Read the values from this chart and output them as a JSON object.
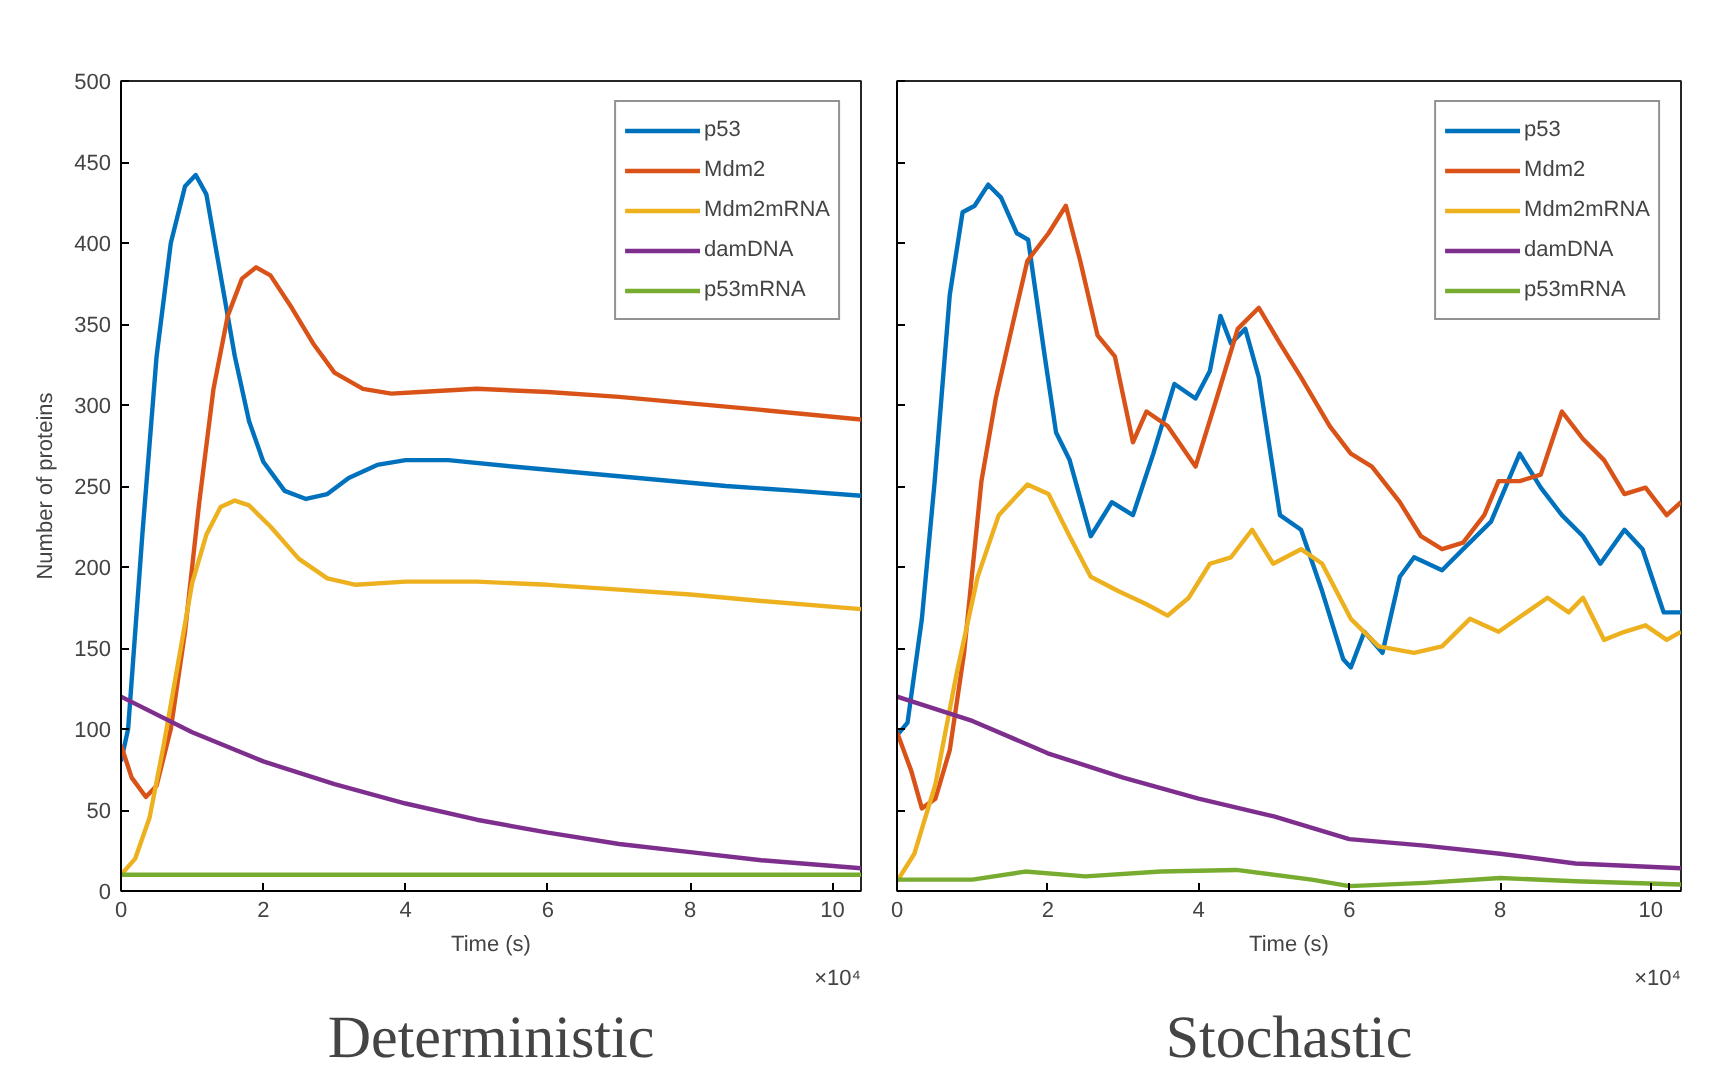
{
  "chart_data": [
    {
      "type": "line",
      "title": "Deterministic",
      "xlabel": "Time (s)",
      "ylabel": "Number of proteins",
      "annotations": [
        "×10⁴"
      ],
      "legend": "top right",
      "grid": false,
      "line_style": "solid",
      "xlim": [
        0,
        10.4
      ],
      "ylim": [
        0,
        500
      ],
      "xticks": [
        0,
        2,
        4,
        6,
        8,
        10
      ],
      "yticks": [
        0,
        50,
        100,
        150,
        200,
        250,
        300,
        350,
        400,
        450,
        500
      ],
      "series": [
        {
          "name": "p53",
          "color": "#0072bd",
          "x": [
            0,
            0.1,
            0.3,
            0.5,
            0.7,
            0.9,
            1.05,
            1.2,
            1.4,
            1.6,
            1.8,
            2.0,
            2.3,
            2.6,
            2.9,
            3.2,
            3.6,
            4.0,
            4.6,
            5.5,
            6.5,
            7.5,
            8.5,
            9.5,
            10.4
          ],
          "values": [
            80,
            100,
            220,
            330,
            400,
            435,
            442,
            430,
            380,
            330,
            290,
            265,
            247,
            242,
            245,
            255,
            263,
            266,
            266,
            262,
            258,
            254,
            250,
            247,
            244
          ]
        },
        {
          "name": "Mdm2",
          "color": "#d95319",
          "x": [
            0,
            0.15,
            0.35,
            0.5,
            0.7,
            0.9,
            1.1,
            1.3,
            1.5,
            1.7,
            1.9,
            2.1,
            2.4,
            2.7,
            3.0,
            3.4,
            3.8,
            4.2,
            5.0,
            6.0,
            7.0,
            8.0,
            9.0,
            10.4
          ],
          "values": [
            90,
            70,
            58,
            65,
            100,
            160,
            240,
            310,
            355,
            378,
            385,
            380,
            360,
            338,
            320,
            310,
            307,
            308,
            310,
            308,
            305,
            301,
            297,
            291
          ]
        },
        {
          "name": "Mdm2mRNA",
          "color": "#edb120",
          "x": [
            0,
            0.2,
            0.4,
            0.6,
            0.8,
            1.0,
            1.2,
            1.4,
            1.6,
            1.8,
            2.1,
            2.5,
            2.9,
            3.3,
            4.0,
            5.0,
            6.0,
            7.0,
            8.0,
            9.0,
            10.4
          ],
          "values": [
            10,
            20,
            45,
            90,
            140,
            190,
            220,
            237,
            241,
            238,
            225,
            205,
            193,
            189,
            191,
            191,
            189,
            186,
            183,
            179,
            174
          ]
        },
        {
          "name": "damDNA",
          "color": "#7e2f8e",
          "x": [
            0,
            1,
            2,
            3,
            4,
            5,
            6,
            7,
            8,
            9,
            10.4
          ],
          "values": [
            120,
            98,
            80,
            66,
            54,
            44,
            36,
            29,
            24,
            19,
            14
          ]
        },
        {
          "name": "p53mRNA",
          "color": "#77ac30",
          "x": [
            0,
            10.4
          ],
          "values": [
            10,
            10
          ]
        }
      ]
    },
    {
      "type": "line",
      "title": "Stochastic",
      "xlabel": "Time (s)",
      "annotations": [
        "×10⁴"
      ],
      "legend": "top right",
      "grid": false,
      "line_style": "solid",
      "tick_labels": "x",
      "xlim": [
        0,
        10.4
      ],
      "ylim": [
        0,
        500
      ],
      "xticks": [
        0,
        2,
        4,
        6,
        8,
        10
      ],
      "yticks": [
        0,
        50,
        100,
        150,
        200,
        250,
        300,
        350,
        400,
        450,
        500
      ],
      "series": [
        {
          "name": "p53",
          "color": "#0072bd",
          "x": [
            0,
            0.14,
            0.33,
            0.5,
            0.7,
            0.87,
            1.03,
            1.21,
            1.38,
            1.59,
            1.74,
            1.96,
            2.11,
            2.29,
            2.57,
            2.85,
            3.13,
            3.4,
            3.68,
            3.96,
            4.15,
            4.29,
            4.43,
            4.62,
            4.8,
            5.08,
            5.36,
            5.64,
            5.92,
            6.02,
            6.2,
            6.44,
            6.67,
            6.86,
            7.23,
            7.51,
            7.88,
            8.26,
            8.54,
            8.82,
            9.1,
            9.33,
            9.65,
            9.89,
            10.17,
            10.4
          ],
          "values": [
            96,
            104,
            168,
            253,
            368,
            419,
            423,
            436,
            428,
            406,
            402,
            330,
            283,
            266,
            219,
            240,
            232,
            270,
            313,
            304,
            321,
            355,
            338,
            347,
            317,
            232,
            223,
            185,
            143,
            138,
            160,
            147,
            194,
            206,
            198,
            211,
            228,
            270,
            249,
            232,
            219,
            202,
            223,
            211,
            172,
            172
          ]
        },
        {
          "name": "Mdm2",
          "color": "#d95319",
          "x": [
            0,
            0.19,
            0.33,
            0.51,
            0.7,
            0.89,
            1.12,
            1.31,
            1.54,
            1.73,
            2.01,
            2.24,
            2.43,
            2.66,
            2.89,
            3.13,
            3.31,
            3.59,
            3.96,
            4.24,
            4.52,
            4.8,
            5.08,
            5.36,
            5.74,
            6.02,
            6.3,
            6.67,
            6.95,
            7.23,
            7.51,
            7.79,
            7.98,
            8.26,
            8.54,
            8.82,
            9.1,
            9.38,
            9.65,
            9.93,
            10.21,
            10.4
          ],
          "values": [
            98,
            74,
            51,
            57,
            87,
            147,
            253,
            304,
            351,
            389,
            406,
            423,
            389,
            343,
            330,
            277,
            296,
            287,
            262,
            304,
            347,
            360,
            338,
            317,
            287,
            270,
            262,
            240,
            219,
            211,
            215,
            232,
            253,
            253,
            257,
            296,
            279,
            266,
            245,
            249,
            232,
            240
          ]
        },
        {
          "name": "Mdm2mRNA",
          "color": "#edb120",
          "x": [
            0,
            0.23,
            0.51,
            0.79,
            1.07,
            1.35,
            1.73,
            2.01,
            2.29,
            2.57,
            2.94,
            3.31,
            3.59,
            3.87,
            4.15,
            4.43,
            4.71,
            4.99,
            5.36,
            5.64,
            6.02,
            6.39,
            6.86,
            7.23,
            7.6,
            7.98,
            8.35,
            8.63,
            8.91,
            9.1,
            9.38,
            9.65,
            9.93,
            10.21,
            10.4
          ],
          "values": [
            6,
            23,
            66,
            134,
            194,
            232,
            251,
            245,
            219,
            194,
            185,
            177,
            170,
            181,
            202,
            206,
            223,
            202,
            211,
            202,
            168,
            151,
            147,
            151,
            168,
            160,
            172,
            181,
            172,
            181,
            155,
            160,
            164,
            155,
            160
          ]
        },
        {
          "name": "damDNA",
          "color": "#7e2f8e",
          "x": [
            0,
            1,
            2,
            3,
            4,
            5,
            6,
            7,
            8,
            9,
            10.4
          ],
          "values": [
            120,
            105,
            85,
            70,
            57,
            46,
            32,
            28,
            23,
            17,
            14
          ]
        },
        {
          "name": "p53mRNA",
          "color": "#77ac30",
          "x": [
            0,
            1,
            1.7,
            2.5,
            3.5,
            4.5,
            5.5,
            6,
            7,
            8,
            9,
            10.4
          ],
          "values": [
            7,
            7,
            12,
            9,
            12,
            13,
            7,
            3,
            5,
            8,
            6,
            4
          ]
        }
      ]
    }
  ]
}
